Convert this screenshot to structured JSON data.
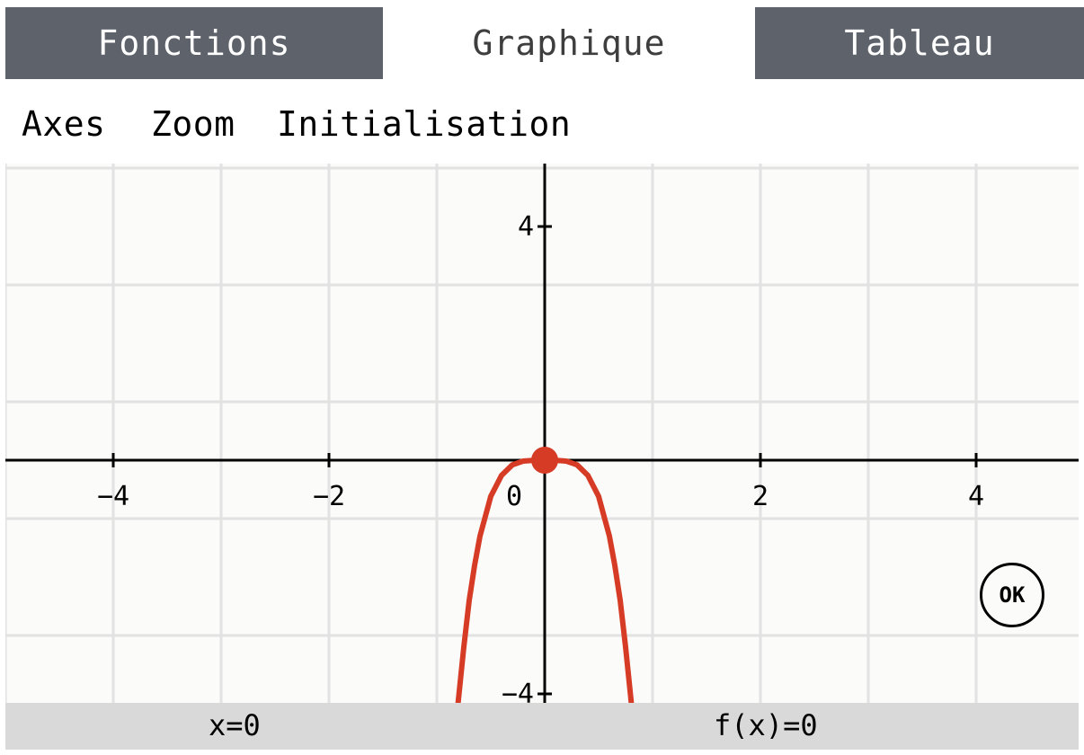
{
  "tabs": [
    {
      "label": "Fonctions",
      "active": false
    },
    {
      "label": "Graphique",
      "active": true
    },
    {
      "label": "Tableau",
      "active": false
    }
  ],
  "menu": {
    "axes": "Axes",
    "zoom": "Zoom",
    "init": "Initialisation"
  },
  "chart_data": {
    "type": "line",
    "xlim": [
      -5,
      5
    ],
    "ylim": [
      -5,
      5
    ],
    "grid": true,
    "x_ticks": [
      {
        "value": -4,
        "label": "−4"
      },
      {
        "value": -2,
        "label": "−2"
      },
      {
        "value": 0,
        "label": "0"
      },
      {
        "value": 2,
        "label": "2"
      },
      {
        "value": 4,
        "label": "4"
      }
    ],
    "y_ticks": [
      {
        "value": 4,
        "label": "4"
      },
      {
        "value": -4,
        "label": "−4"
      }
    ],
    "series": [
      {
        "color": "#d63b25",
        "points": [
          [
            -0.84,
            -4.9
          ],
          [
            -0.8,
            -4.1
          ],
          [
            -0.75,
            -3.2
          ],
          [
            -0.7,
            -2.4
          ],
          [
            -0.65,
            -1.8
          ],
          [
            -0.6,
            -1.3
          ],
          [
            -0.5,
            -0.62
          ],
          [
            -0.4,
            -0.26
          ],
          [
            -0.3,
            -0.08
          ],
          [
            -0.2,
            -0.016
          ],
          [
            -0.1,
            -0.001
          ],
          [
            0,
            0
          ],
          [
            0.1,
            -0.001
          ],
          [
            0.2,
            -0.016
          ],
          [
            0.3,
            -0.08
          ],
          [
            0.4,
            -0.26
          ],
          [
            0.5,
            -0.62
          ],
          [
            0.6,
            -1.3
          ],
          [
            0.65,
            -1.8
          ],
          [
            0.7,
            -2.4
          ],
          [
            0.75,
            -3.2
          ],
          [
            0.8,
            -4.1
          ],
          [
            0.84,
            -4.9
          ]
        ]
      }
    ],
    "cursor": {
      "x": 0,
      "y": 0,
      "color": "#d63b25"
    }
  },
  "ok_label": "OK",
  "status": {
    "x": "x=0",
    "fx": "f(x)=0"
  }
}
